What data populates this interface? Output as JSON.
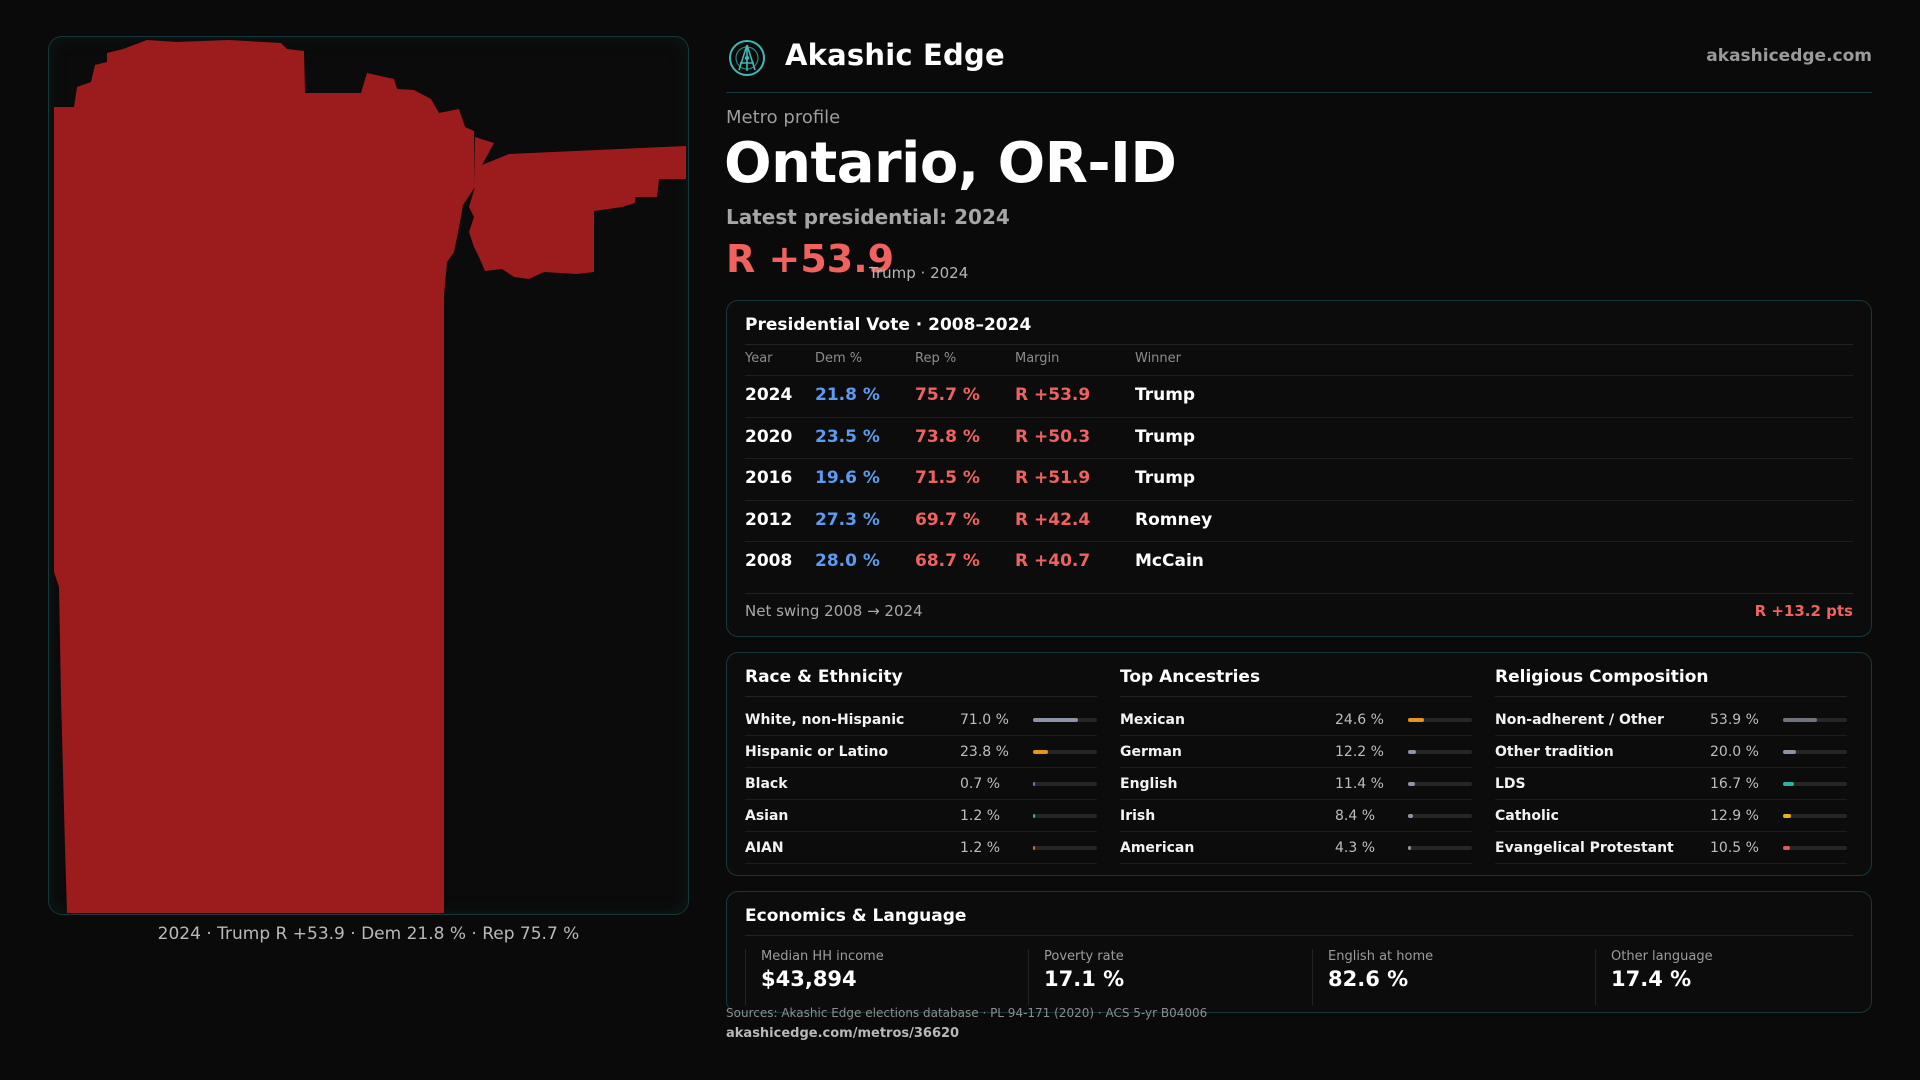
{
  "brand": {
    "name": "Akashic Edge",
    "url": "akashicedge.com",
    "logo_icon": "akashic-edge-logo-icon"
  },
  "profile": {
    "eyebrow": "Metro profile",
    "title": "Ontario, OR-ID",
    "latest": "Latest presidential: 2024",
    "margin": "R +53.9",
    "margin_sub": "Trump · 2024"
  },
  "map": {
    "fill_color": "#9c1c1e",
    "caption": "2024 · Trump R +53.9 · Dem 21.8 % · Rep 75.7 %"
  },
  "vote": {
    "title": "Presidential Vote · 2008–2024",
    "headers": {
      "year": "Year",
      "dem": "Dem %",
      "rep": "Rep %",
      "margin": "Margin",
      "winner": "Winner"
    },
    "rows": [
      {
        "year": "2024",
        "dem": "21.8 %",
        "rep": "75.7 %",
        "margin": "R +53.9",
        "winner": "Trump"
      },
      {
        "year": "2020",
        "dem": "23.5 %",
        "rep": "73.8 %",
        "margin": "R +50.3",
        "winner": "Trump"
      },
      {
        "year": "2016",
        "dem": "19.6 %",
        "rep": "71.5 %",
        "margin": "R +51.9",
        "winner": "Trump"
      },
      {
        "year": "2012",
        "dem": "27.3 %",
        "rep": "69.7 %",
        "margin": "R +42.4",
        "winner": "Romney"
      },
      {
        "year": "2008",
        "dem": "28.0 %",
        "rep": "68.7 %",
        "margin": "R +40.7",
        "winner": "McCain"
      }
    ],
    "net_swing_label": "Net swing 2008 → 2024",
    "net_swing_value": "R +13.2 pts",
    "colors": {
      "dem": "#5d9bf0",
      "rep": "#ee6260"
    }
  },
  "demographics": {
    "race": {
      "title": "Race & Ethnicity",
      "items": [
        {
          "label": "White, non-Hispanic",
          "value": "71.0 %",
          "pct": 71.0,
          "color": "#8a94a6"
        },
        {
          "label": "Hispanic or Latino",
          "value": "23.8 %",
          "pct": 23.8,
          "color": "#e8951f"
        },
        {
          "label": "Black",
          "value": "0.7 %",
          "pct": 0.7,
          "color": "#5d7bd6"
        },
        {
          "label": "Asian",
          "value": "1.2 %",
          "pct": 1.2,
          "color": "#2bb3a3"
        },
        {
          "label": "AIAN",
          "value": "1.2 %",
          "pct": 1.2,
          "color": "#d8683a"
        }
      ]
    },
    "ancestry": {
      "title": "Top Ancestries",
      "items": [
        {
          "label": "Mexican",
          "value": "24.6 %",
          "pct": 24.6,
          "color": "#e8951f"
        },
        {
          "label": "German",
          "value": "12.2 %",
          "pct": 12.2,
          "color": "#8a94a6"
        },
        {
          "label": "English",
          "value": "11.4 %",
          "pct": 11.4,
          "color": "#8a94a6"
        },
        {
          "label": "Irish",
          "value": "8.4 %",
          "pct": 8.4,
          "color": "#8a94a6"
        },
        {
          "label": "American",
          "value": "4.3 %",
          "pct": 4.3,
          "color": "#8a94a6"
        }
      ]
    },
    "religion": {
      "title": "Religious Composition",
      "items": [
        {
          "label": "Non-adherent / Other",
          "value": "53.9 %",
          "pct": 53.9,
          "color": "#6f7480"
        },
        {
          "label": "Other tradition",
          "value": "20.0 %",
          "pct": 20.0,
          "color": "#8a94a6"
        },
        {
          "label": "LDS",
          "value": "16.7 %",
          "pct": 16.7,
          "color": "#2bb3a3"
        },
        {
          "label": "Catholic",
          "value": "12.9 %",
          "pct": 12.9,
          "color": "#e8b21f"
        },
        {
          "label": "Evangelical Protestant",
          "value": "10.5 %",
          "pct": 10.5,
          "color": "#e05a5a"
        }
      ]
    }
  },
  "economics": {
    "title": "Economics & Language",
    "cells": [
      {
        "label": "Median HH income",
        "value": "$43,894"
      },
      {
        "label": "Poverty rate",
        "value": "17.1 %"
      },
      {
        "label": "English at home",
        "value": "82.6 %"
      },
      {
        "label": "Other language",
        "value": "17.4 %"
      }
    ]
  },
  "footer": {
    "sources": "Sources: Akashic Edge elections database · PL 94-171 (2020) · ACS 5-yr B04006",
    "url": "akashicedge.com/metros/36620"
  }
}
